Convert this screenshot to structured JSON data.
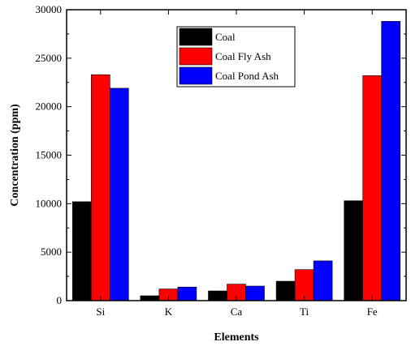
{
  "chart_data": {
    "type": "bar",
    "title": "",
    "xlabel": "Elements",
    "ylabel": "Concentration (ppm)",
    "categories": [
      "Si",
      "K",
      "Ca",
      "Ti",
      "Fe"
    ],
    "ylim": [
      0,
      30000
    ],
    "yticks": [
      0,
      5000,
      10000,
      15000,
      20000,
      25000,
      30000
    ],
    "grid": false,
    "legend_position": "top-center",
    "series": [
      {
        "name": "Coal",
        "color": "#000000",
        "values": [
          10200,
          500,
          1000,
          2000,
          10300
        ]
      },
      {
        "name": "Coal Fly Ash",
        "color": "#ff0000",
        "values": [
          23300,
          1200,
          1700,
          3200,
          23200
        ]
      },
      {
        "name": "Coal Pond Ash",
        "color": "#0000ff",
        "values": [
          21900,
          1400,
          1500,
          4100,
          28800
        ]
      }
    ]
  }
}
